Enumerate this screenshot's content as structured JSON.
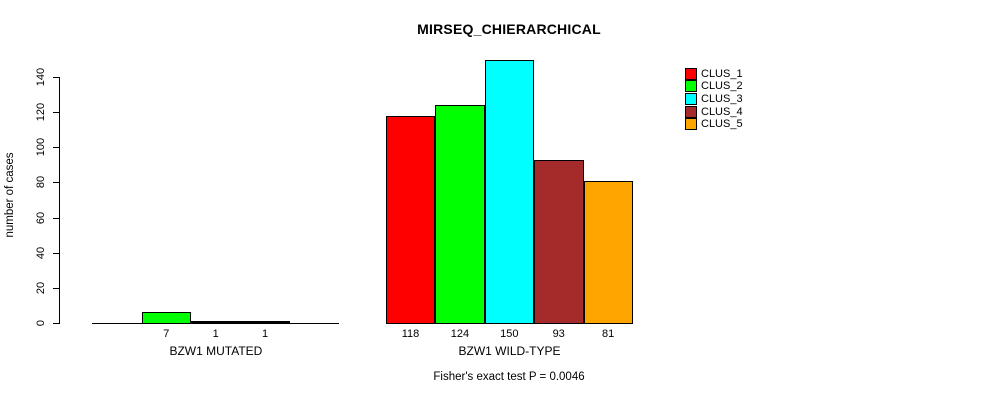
{
  "title": "MIRSEQ_CHIERARCHICAL",
  "subtitle": "Fisher's exact test P = 0.0046",
  "y_axis": {
    "label": "number of cases"
  },
  "legend": {
    "items": [
      {
        "label": "CLUS_1",
        "color": "#FF0000"
      },
      {
        "label": "CLUS_2",
        "color": "#00FF00"
      },
      {
        "label": "CLUS_3",
        "color": "#00FFFF"
      },
      {
        "label": "CLUS_4",
        "color": "#A52A2A"
      },
      {
        "label": "CLUS_5",
        "color": "#FFA500"
      }
    ]
  },
  "chart_data": {
    "type": "bar",
    "title": "MIRSEQ_CHIERARCHICAL",
    "xlabel": "",
    "ylabel": "number of cases",
    "ylim": [
      0,
      150
    ],
    "yticks": [
      0,
      20,
      40,
      60,
      80,
      100,
      120,
      140
    ],
    "grid": false,
    "legend_position": "top-right",
    "categories": [
      "BZW1 MUTATED",
      "BZW1 WILD-TYPE"
    ],
    "series": [
      {
        "name": "CLUS_1",
        "color": "#FF0000",
        "values": [
          0,
          118
        ]
      },
      {
        "name": "CLUS_2",
        "color": "#00FF00",
        "values": [
          7,
          124
        ]
      },
      {
        "name": "CLUS_3",
        "color": "#00FFFF",
        "values": [
          1,
          150
        ]
      },
      {
        "name": "CLUS_4",
        "color": "#A52A2A",
        "values": [
          1,
          93
        ]
      },
      {
        "name": "CLUS_5",
        "color": "#FFA500",
        "values": [
          0,
          81
        ]
      }
    ],
    "bar_value_labels": [
      [
        "",
        "7",
        "1",
        "1",
        ""
      ],
      [
        "118",
        "124",
        "150",
        "93",
        "81"
      ]
    ],
    "annotation": "Fisher's exact test P = 0.0046"
  }
}
